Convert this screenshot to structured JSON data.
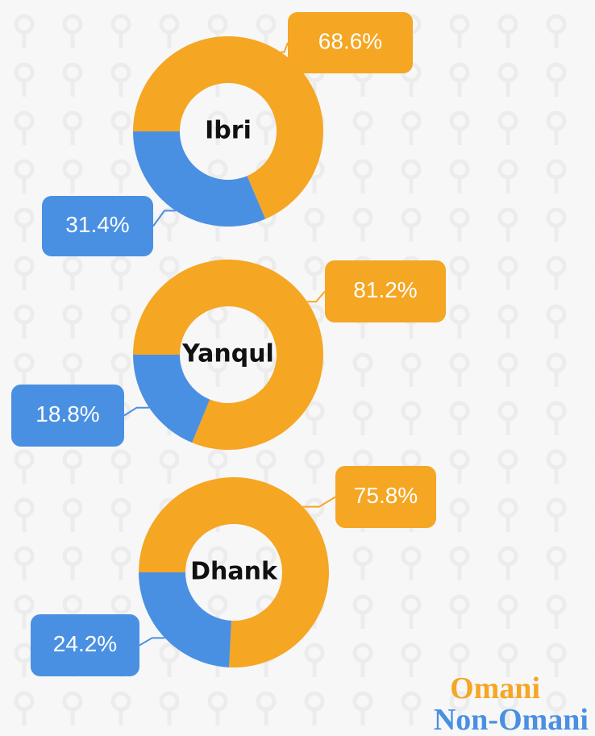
{
  "chart_data": [
    {
      "type": "pie",
      "title": "Ibri",
      "categories": [
        "Omani",
        "Non-Omani"
      ],
      "values": [
        68.6,
        31.4
      ],
      "value_labels": [
        "68.6%",
        "31.4%"
      ],
      "colors": [
        "#f5a623",
        "#4a90e2"
      ]
    },
    {
      "type": "pie",
      "title": "Yanqul",
      "categories": [
        "Omani",
        "Non-Omani"
      ],
      "values": [
        81.2,
        18.8
      ],
      "value_labels": [
        "81.2%",
        "18.8%"
      ],
      "colors": [
        "#f5a623",
        "#4a90e2"
      ]
    },
    {
      "type": "pie",
      "title": "Dhank",
      "categories": [
        "Omani",
        "Non-Omani"
      ],
      "values": [
        75.8,
        24.2
      ],
      "value_labels": [
        "75.8%",
        "24.2%"
      ],
      "colors": [
        "#f5a623",
        "#4a90e2"
      ]
    }
  ]
}
